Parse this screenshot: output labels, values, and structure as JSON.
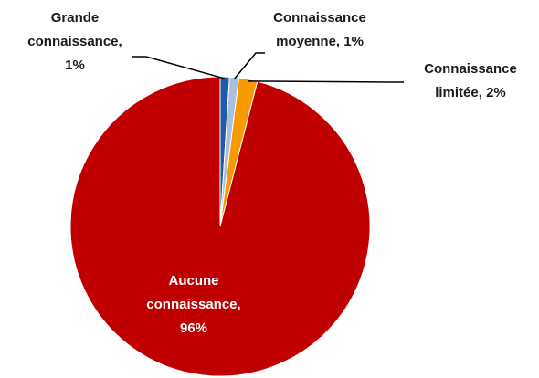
{
  "chart_data": {
    "type": "pie",
    "values": [
      1,
      1,
      2,
      96
    ],
    "value_labels": [
      [
        "Grande",
        "connaissance,",
        "1%"
      ],
      [
        "Connaissance",
        "moyenne, 1%"
      ],
      [
        "Connaissance",
        "limitée, 2%"
      ],
      [
        "Aucune",
        "connaissance,",
        "96%"
      ]
    ],
    "colors": [
      "#1f5aa6",
      "#a9bfdc",
      "#f59a00",
      "#c00000"
    ]
  }
}
